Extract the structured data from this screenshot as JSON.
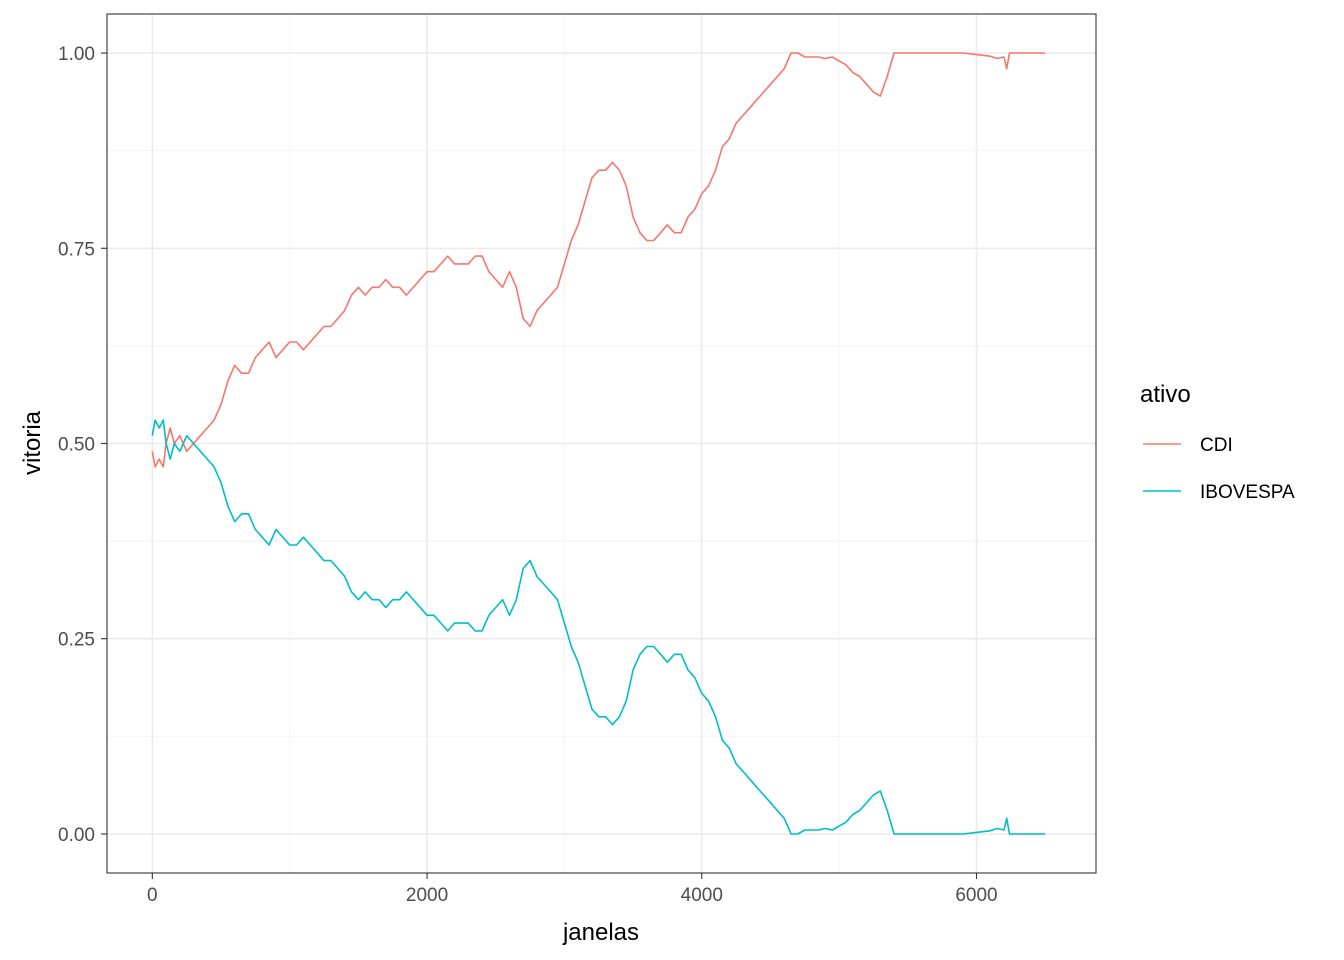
{
  "chart_data": {
    "type": "line",
    "xlabel": "janelas",
    "ylabel": "vitoria",
    "xlim": [
      -330,
      6870
    ],
    "ylim": [
      -0.05,
      1.05
    ],
    "x_ticks": [
      0,
      2000,
      4000,
      6000
    ],
    "x_tick_labels": [
      "0",
      "2000",
      "4000",
      "6000"
    ],
    "y_ticks": [
      0,
      0.25,
      0.5,
      0.75,
      1
    ],
    "y_tick_labels": [
      "0.00",
      "0.25",
      "0.50",
      "0.75",
      "1.00"
    ],
    "grid": true,
    "legend": {
      "title": "ativo",
      "position": "right"
    },
    "series": [
      {
        "name": "CDI",
        "color": "#F8766D",
        "points": [
          [
            0,
            0.49
          ],
          [
            20,
            0.47
          ],
          [
            50,
            0.48
          ],
          [
            80,
            0.47
          ],
          [
            100,
            0.5
          ],
          [
            130,
            0.52
          ],
          [
            160,
            0.5
          ],
          [
            200,
            0.51
          ],
          [
            250,
            0.49
          ],
          [
            300,
            0.5
          ],
          [
            350,
            0.51
          ],
          [
            400,
            0.52
          ],
          [
            450,
            0.53
          ],
          [
            500,
            0.55
          ],
          [
            550,
            0.58
          ],
          [
            600,
            0.6
          ],
          [
            650,
            0.59
          ],
          [
            700,
            0.59
          ],
          [
            750,
            0.61
          ],
          [
            800,
            0.62
          ],
          [
            850,
            0.63
          ],
          [
            900,
            0.61
          ],
          [
            950,
            0.62
          ],
          [
            1000,
            0.63
          ],
          [
            1050,
            0.63
          ],
          [
            1100,
            0.62
          ],
          [
            1150,
            0.63
          ],
          [
            1200,
            0.64
          ],
          [
            1250,
            0.65
          ],
          [
            1300,
            0.65
          ],
          [
            1350,
            0.66
          ],
          [
            1400,
            0.67
          ],
          [
            1450,
            0.69
          ],
          [
            1500,
            0.7
          ],
          [
            1550,
            0.69
          ],
          [
            1600,
            0.7
          ],
          [
            1650,
            0.7
          ],
          [
            1700,
            0.71
          ],
          [
            1750,
            0.7
          ],
          [
            1800,
            0.7
          ],
          [
            1850,
            0.69
          ],
          [
            1900,
            0.7
          ],
          [
            1950,
            0.71
          ],
          [
            2000,
            0.72
          ],
          [
            2050,
            0.72
          ],
          [
            2100,
            0.73
          ],
          [
            2150,
            0.74
          ],
          [
            2200,
            0.73
          ],
          [
            2250,
            0.73
          ],
          [
            2300,
            0.73
          ],
          [
            2350,
            0.74
          ],
          [
            2400,
            0.74
          ],
          [
            2450,
            0.72
          ],
          [
            2500,
            0.71
          ],
          [
            2550,
            0.7
          ],
          [
            2600,
            0.72
          ],
          [
            2650,
            0.7
          ],
          [
            2700,
            0.66
          ],
          [
            2750,
            0.65
          ],
          [
            2800,
            0.67
          ],
          [
            2850,
            0.68
          ],
          [
            2900,
            0.69
          ],
          [
            2950,
            0.7
          ],
          [
            3000,
            0.73
          ],
          [
            3050,
            0.76
          ],
          [
            3100,
            0.78
          ],
          [
            3150,
            0.81
          ],
          [
            3200,
            0.84
          ],
          [
            3250,
            0.85
          ],
          [
            3300,
            0.85
          ],
          [
            3350,
            0.86
          ],
          [
            3400,
            0.85
          ],
          [
            3450,
            0.83
          ],
          [
            3500,
            0.79
          ],
          [
            3550,
            0.77
          ],
          [
            3600,
            0.76
          ],
          [
            3650,
            0.76
          ],
          [
            3700,
            0.77
          ],
          [
            3750,
            0.78
          ],
          [
            3800,
            0.77
          ],
          [
            3850,
            0.77
          ],
          [
            3900,
            0.79
          ],
          [
            3950,
            0.8
          ],
          [
            4000,
            0.82
          ],
          [
            4050,
            0.83
          ],
          [
            4100,
            0.85
          ],
          [
            4150,
            0.88
          ],
          [
            4200,
            0.89
          ],
          [
            4250,
            0.91
          ],
          [
            4300,
            0.92
          ],
          [
            4350,
            0.93
          ],
          [
            4400,
            0.94
          ],
          [
            4450,
            0.95
          ],
          [
            4500,
            0.96
          ],
          [
            4550,
            0.97
          ],
          [
            4600,
            0.98
          ],
          [
            4650,
            1.0
          ],
          [
            4700,
            1.0
          ],
          [
            4750,
            0.995
          ],
          [
            4800,
            0.995
          ],
          [
            4850,
            0.995
          ],
          [
            4900,
            0.993
          ],
          [
            4950,
            0.995
          ],
          [
            5000,
            0.99
          ],
          [
            5050,
            0.985
          ],
          [
            5100,
            0.975
          ],
          [
            5150,
            0.97
          ],
          [
            5200,
            0.96
          ],
          [
            5250,
            0.95
          ],
          [
            5300,
            0.945
          ],
          [
            5350,
            0.97
          ],
          [
            5400,
            1.0
          ],
          [
            5500,
            1.0
          ],
          [
            5600,
            1.0
          ],
          [
            5700,
            1.0
          ],
          [
            5800,
            1.0
          ],
          [
            5900,
            1.0
          ],
          [
            6000,
            0.998
          ],
          [
            6100,
            0.996
          ],
          [
            6150,
            0.993
          ],
          [
            6200,
            0.995
          ],
          [
            6220,
            0.98
          ],
          [
            6240,
            1.0
          ],
          [
            6300,
            1.0
          ],
          [
            6400,
            1.0
          ],
          [
            6500,
            1.0
          ]
        ]
      },
      {
        "name": "IBOVESPA",
        "color": "#00BFC4",
        "points": [
          [
            0,
            0.51
          ],
          [
            20,
            0.53
          ],
          [
            50,
            0.52
          ],
          [
            80,
            0.53
          ],
          [
            100,
            0.5
          ],
          [
            130,
            0.48
          ],
          [
            160,
            0.5
          ],
          [
            200,
            0.49
          ],
          [
            250,
            0.51
          ],
          [
            300,
            0.5
          ],
          [
            350,
            0.49
          ],
          [
            400,
            0.48
          ],
          [
            450,
            0.47
          ],
          [
            500,
            0.45
          ],
          [
            550,
            0.42
          ],
          [
            600,
            0.4
          ],
          [
            650,
            0.41
          ],
          [
            700,
            0.41
          ],
          [
            750,
            0.39
          ],
          [
            800,
            0.38
          ],
          [
            850,
            0.37
          ],
          [
            900,
            0.39
          ],
          [
            950,
            0.38
          ],
          [
            1000,
            0.37
          ],
          [
            1050,
            0.37
          ],
          [
            1100,
            0.38
          ],
          [
            1150,
            0.37
          ],
          [
            1200,
            0.36
          ],
          [
            1250,
            0.35
          ],
          [
            1300,
            0.35
          ],
          [
            1350,
            0.34
          ],
          [
            1400,
            0.33
          ],
          [
            1450,
            0.31
          ],
          [
            1500,
            0.3
          ],
          [
            1550,
            0.31
          ],
          [
            1600,
            0.3
          ],
          [
            1650,
            0.3
          ],
          [
            1700,
            0.29
          ],
          [
            1750,
            0.3
          ],
          [
            1800,
            0.3
          ],
          [
            1850,
            0.31
          ],
          [
            1900,
            0.3
          ],
          [
            1950,
            0.29
          ],
          [
            2000,
            0.28
          ],
          [
            2050,
            0.28
          ],
          [
            2100,
            0.27
          ],
          [
            2150,
            0.26
          ],
          [
            2200,
            0.27
          ],
          [
            2250,
            0.27
          ],
          [
            2300,
            0.27
          ],
          [
            2350,
            0.26
          ],
          [
            2400,
            0.26
          ],
          [
            2450,
            0.28
          ],
          [
            2500,
            0.29
          ],
          [
            2550,
            0.3
          ],
          [
            2600,
            0.28
          ],
          [
            2650,
            0.3
          ],
          [
            2700,
            0.34
          ],
          [
            2750,
            0.35
          ],
          [
            2800,
            0.33
          ],
          [
            2850,
            0.32
          ],
          [
            2900,
            0.31
          ],
          [
            2950,
            0.3
          ],
          [
            3000,
            0.27
          ],
          [
            3050,
            0.24
          ],
          [
            3100,
            0.22
          ],
          [
            3150,
            0.19
          ],
          [
            3200,
            0.16
          ],
          [
            3250,
            0.15
          ],
          [
            3300,
            0.15
          ],
          [
            3350,
            0.14
          ],
          [
            3400,
            0.15
          ],
          [
            3450,
            0.17
          ],
          [
            3500,
            0.21
          ],
          [
            3550,
            0.23
          ],
          [
            3600,
            0.24
          ],
          [
            3650,
            0.24
          ],
          [
            3700,
            0.23
          ],
          [
            3750,
            0.22
          ],
          [
            3800,
            0.23
          ],
          [
            3850,
            0.23
          ],
          [
            3900,
            0.21
          ],
          [
            3950,
            0.2
          ],
          [
            4000,
            0.18
          ],
          [
            4050,
            0.17
          ],
          [
            4100,
            0.15
          ],
          [
            4150,
            0.12
          ],
          [
            4200,
            0.11
          ],
          [
            4250,
            0.09
          ],
          [
            4300,
            0.08
          ],
          [
            4350,
            0.07
          ],
          [
            4400,
            0.06
          ],
          [
            4450,
            0.05
          ],
          [
            4500,
            0.04
          ],
          [
            4550,
            0.03
          ],
          [
            4600,
            0.02
          ],
          [
            4650,
            0.0
          ],
          [
            4700,
            0.0
          ],
          [
            4750,
            0.005
          ],
          [
            4800,
            0.005
          ],
          [
            4850,
            0.005
          ],
          [
            4900,
            0.007
          ],
          [
            4950,
            0.005
          ],
          [
            5000,
            0.01
          ],
          [
            5050,
            0.015
          ],
          [
            5100,
            0.025
          ],
          [
            5150,
            0.03
          ],
          [
            5200,
            0.04
          ],
          [
            5250,
            0.05
          ],
          [
            5300,
            0.055
          ],
          [
            5350,
            0.03
          ],
          [
            5400,
            0.0
          ],
          [
            5500,
            0.0
          ],
          [
            5600,
            0.0
          ],
          [
            5700,
            0.0
          ],
          [
            5800,
            0.0
          ],
          [
            5900,
            0.0
          ],
          [
            6000,
            0.002
          ],
          [
            6100,
            0.004
          ],
          [
            6150,
            0.007
          ],
          [
            6200,
            0.005
          ],
          [
            6220,
            0.02
          ],
          [
            6240,
            0.0
          ],
          [
            6300,
            0.0
          ],
          [
            6400,
            0.0
          ],
          [
            6500,
            0.0
          ]
        ]
      }
    ]
  }
}
